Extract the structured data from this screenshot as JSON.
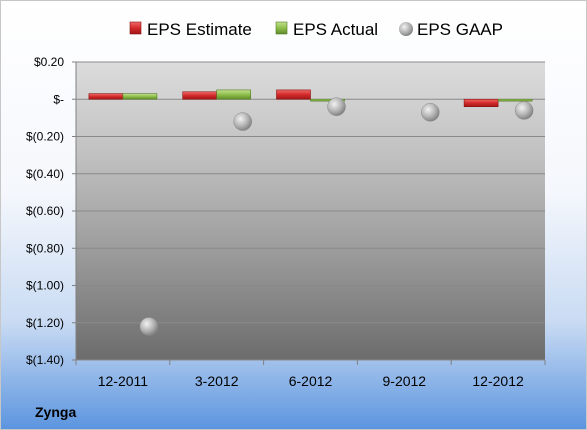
{
  "company": "Zynga",
  "chart_data": {
    "type": "bar",
    "categories": [
      "12-2011",
      "3-2012",
      "6-2012",
      "9-2012",
      "12-2012"
    ],
    "series": [
      {
        "name": "EPS Estimate",
        "type": "bar",
        "color": "#d42a2a",
        "values": [
          0.03,
          0.04,
          0.05,
          null,
          -0.04
        ]
      },
      {
        "name": "EPS Actual",
        "type": "bar",
        "color": "#8fbf4c",
        "values": [
          0.03,
          0.05,
          -0.01,
          null,
          -0.01
        ]
      },
      {
        "name": "EPS GAAP",
        "type": "scatter",
        "color": "#a8a8a8",
        "values": [
          -1.22,
          -0.12,
          -0.04,
          -0.07,
          -0.06
        ]
      }
    ],
    "yticks": [
      0.2,
      0,
      -0.2,
      -0.4,
      -0.6,
      -0.8,
      -1.0,
      -1.2,
      -1.4
    ],
    "ytick_labels": [
      "$0.20",
      "$-",
      "$(0.20)",
      "$(0.40)",
      "$(0.60)",
      "$(0.80)",
      "$(1.00)",
      "$(1.20)",
      "$(1.40)"
    ],
    "ylim": [
      -1.4,
      0.2
    ],
    "grid": true,
    "legend_position": "top"
  }
}
